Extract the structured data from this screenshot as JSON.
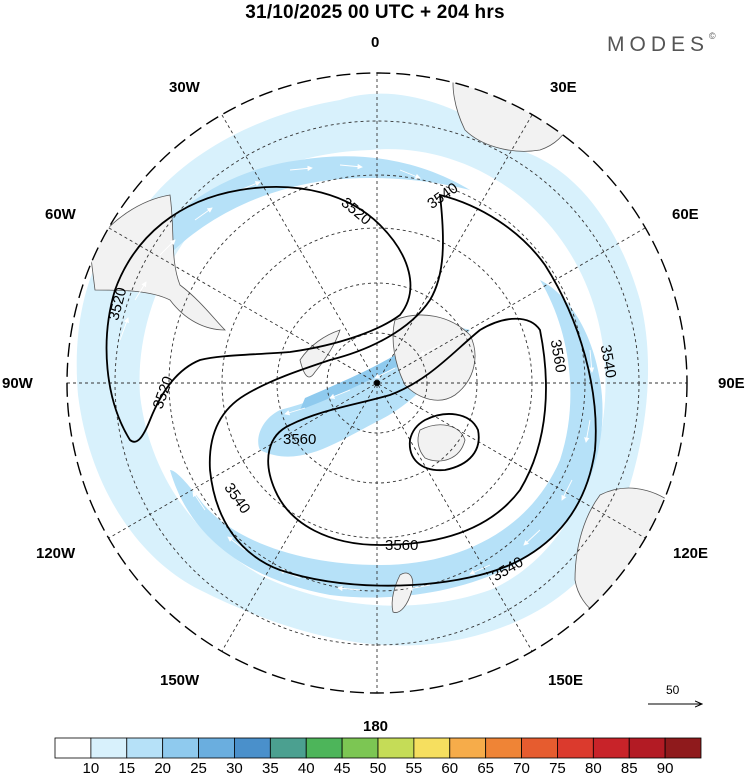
{
  "header": {
    "title": "31/10/2025  00 UTC  + 204 hrs",
    "brand": "MODES",
    "brand_mark": "©"
  },
  "map": {
    "projection": "south-polar-stereographic",
    "longitude_labels": [
      "0",
      "30E",
      "60E",
      "90E",
      "120E",
      "150E",
      "180",
      "150W",
      "120W",
      "90W",
      "60W",
      "30W"
    ],
    "latitude_circles_deg": [
      -80,
      -70,
      -60,
      -50,
      -40,
      -30
    ],
    "contour_labels": [
      "3520",
      "3520",
      "3520",
      "3540",
      "3540",
      "3540",
      "3540",
      "3560",
      "3560",
      "3560"
    ],
    "contour_line_color": "#000000",
    "land_color": "#f2f2f2",
    "coast_color": "#555555"
  },
  "vector_reference": {
    "label": "50"
  },
  "colorbar": {
    "levels": [
      "10",
      "15",
      "20",
      "25",
      "30",
      "35",
      "40",
      "45",
      "50",
      "55",
      "60",
      "65",
      "70",
      "75",
      "80",
      "85",
      "90"
    ],
    "colors": [
      "#ffffff",
      "#d8f1fc",
      "#b6e1f8",
      "#8fcaee",
      "#6aaedf",
      "#4a90cb",
      "#4ba090",
      "#4db55a",
      "#7cc653",
      "#c5dc57",
      "#f6df5f",
      "#f6ac4a",
      "#ef8436",
      "#e65c2f",
      "#db3a2d",
      "#c82329",
      "#b31b24",
      "#8f1a1c"
    ]
  }
}
